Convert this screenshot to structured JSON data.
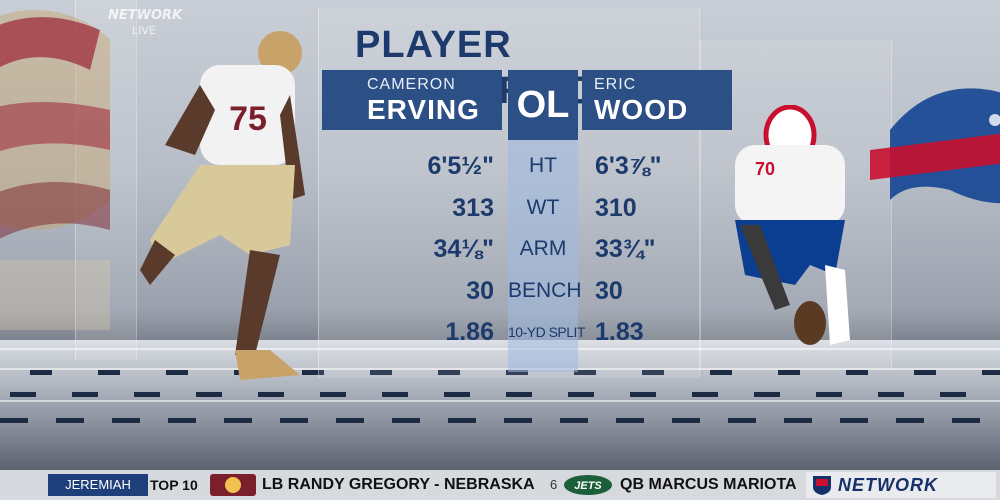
{
  "network_watermark": {
    "line1": "NETWORK",
    "line2": "LIVE"
  },
  "graphic": {
    "title": "PLAYER COMPARISON",
    "left_player": {
      "first": "CAMERON",
      "last": "ERVING",
      "jersey": "75"
    },
    "position": "OL",
    "right_player": {
      "first": "ERIC",
      "last": "WOOD",
      "jersey": "70"
    },
    "rows": [
      {
        "stat": "HT",
        "left": "6'5½\"",
        "right": "6'3⅞\""
      },
      {
        "stat": "WT",
        "left": "313",
        "right": "310"
      },
      {
        "stat": "ARM",
        "left": "34⅛\"",
        "right": "33¾\""
      },
      {
        "stat": "BENCH",
        "left": "30",
        "right": "30"
      },
      {
        "stat": "10-YD SPLIT",
        "left": "1.86",
        "right": "1.83"
      }
    ]
  },
  "ticker": {
    "label": "JEREMIAH MOCK",
    "top": "TOP 10",
    "pick_left": "LB RANDY GREGORY - NEBRASKA",
    "pick_number": "6",
    "pick_right": "QB MARCUS MARIOTA",
    "network_logo": "NETWORK",
    "jets_label": "JETS"
  },
  "icons": [
    "seminoles-logo",
    "bills-logo",
    "redskins-icon",
    "jets-icon",
    "nfl-shield-icon"
  ],
  "colors": {
    "navy": "#1c3a6b",
    "name_box": "#2c4f86",
    "ticker_label": "#1f3f7a",
    "bills_red": "#c8102e",
    "bills_blue": "#0b3d91"
  }
}
